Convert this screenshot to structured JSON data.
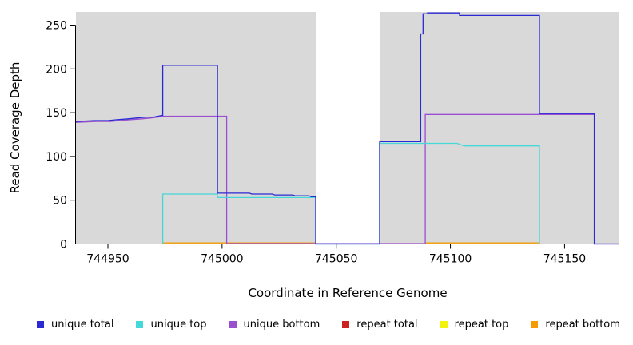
{
  "chart_data": {
    "type": "line",
    "subtype": "step-coverage-plot",
    "title": "",
    "xlabel": "Coordinate in Reference Genome",
    "ylabel": "Read Coverage Depth",
    "xlim": [
      744936,
      745174
    ],
    "ylim": [
      0,
      265
    ],
    "x_ticks": [
      744950,
      745000,
      745050,
      745100,
      745150
    ],
    "y_ticks": [
      0,
      50,
      100,
      150,
      200,
      250
    ],
    "grid": false,
    "legend_position": "bottom",
    "background": {
      "panel_color": "#d9d9d9",
      "gap_color": "#ffffff",
      "shaded_regions": [
        [
          744936,
          745041
        ],
        [
          745069,
          745174
        ]
      ],
      "uncovered_gap": [
        745041,
        745069
      ]
    },
    "series": [
      {
        "name": "unique total",
        "color": "#2a2ad4",
        "segments": [
          [
            [
              744936,
              140
            ],
            [
              744944,
              141
            ],
            [
              744950,
              141
            ],
            [
              744954,
              142
            ],
            [
              744959,
              143
            ],
            [
              744963,
              144
            ],
            [
              744967,
              145
            ],
            [
              744970,
              145
            ],
            [
              744972,
              146
            ],
            [
              744974,
              147
            ],
            [
              744974,
              204
            ],
            [
              744998,
              204
            ],
            [
              744998,
              58
            ],
            [
              745012,
              58
            ],
            [
              745013,
              57
            ],
            [
              745022,
              57
            ],
            [
              745023,
              56
            ],
            [
              745031,
              56
            ],
            [
              745032,
              55
            ],
            [
              745038,
              55
            ],
            [
              745039,
              54
            ],
            [
              745041,
              54
            ],
            [
              745041,
              0
            ],
            [
              745069,
              0
            ],
            [
              745069,
              117
            ],
            [
              745087,
              117
            ],
            [
              745087,
              240
            ],
            [
              745088,
              240
            ],
            [
              745088,
              263
            ],
            [
              745090,
              263
            ],
            [
              745090,
              264
            ],
            [
              745104,
              264
            ],
            [
              745104,
              261
            ],
            [
              745139,
              261
            ],
            [
              745139,
              149
            ],
            [
              745163,
              149
            ],
            [
              745163,
              0
            ],
            [
              745174,
              0
            ]
          ]
        ]
      },
      {
        "name": "unique top",
        "color": "#45d8d8",
        "segments": [
          [
            [
              744974,
              0
            ],
            [
              744974,
              57
            ],
            [
              744998,
              57
            ],
            [
              744998,
              53
            ],
            [
              745041,
              53
            ],
            [
              745041,
              0
            ],
            [
              745069,
              0
            ],
            [
              745069,
              115
            ],
            [
              745103,
              115
            ],
            [
              745106,
              112
            ],
            [
              745139,
              112
            ],
            [
              745139,
              0
            ]
          ]
        ]
      },
      {
        "name": "unique bottom",
        "color": "#9a4fd0",
        "segments": [
          [
            [
              744936,
              139
            ],
            [
              744945,
              140
            ],
            [
              744951,
              140
            ],
            [
              744955,
              141
            ],
            [
              744960,
              142
            ],
            [
              744965,
              143
            ],
            [
              744969,
              144
            ],
            [
              744972,
              145
            ],
            [
              744974,
              146
            ],
            [
              745002,
              146
            ],
            [
              745002,
              0.5
            ],
            [
              745089,
              0.5
            ],
            [
              745089,
              148
            ],
            [
              745163,
              148
            ],
            [
              745163,
              0
            ],
            [
              745174,
              0
            ]
          ]
        ]
      },
      {
        "name": "repeat total",
        "color": "#cc2222",
        "segments": []
      },
      {
        "name": "repeat top",
        "color": "#f2f20c",
        "segments": []
      },
      {
        "name": "repeat bottom",
        "color": "#f59b00",
        "segments": [
          [
            [
              744974,
              1.2
            ],
            [
              745041,
              1.2
            ]
          ],
          [
            [
              745089,
              1.2
            ],
            [
              745139,
              1.2
            ]
          ]
        ]
      }
    ]
  }
}
